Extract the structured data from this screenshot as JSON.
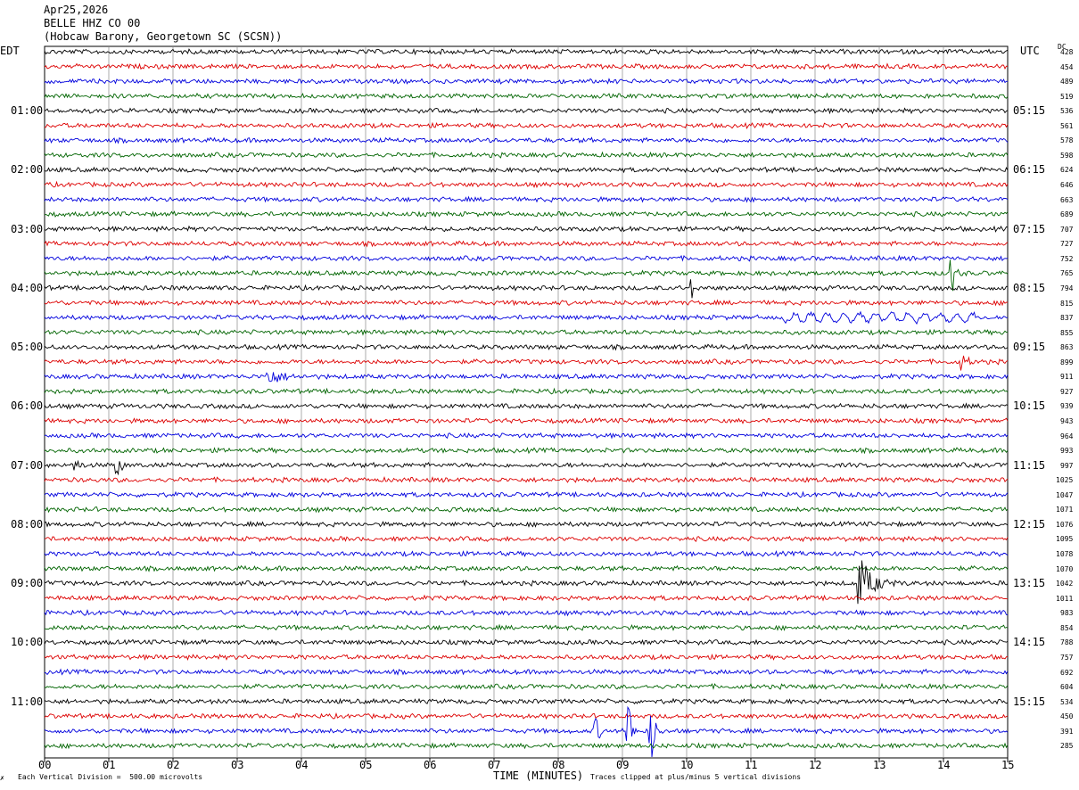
{
  "header": {
    "date": "Apr25,2026",
    "station": "BELLE HHZ CO 00",
    "location": "(Hobcaw Barony, Georgetown SC (SCSN))"
  },
  "left_timezone": "EDT",
  "right_timezone": "UTC",
  "dc_label": "DC",
  "footer": {
    "scale_note": "Each Vertical Division =  500.00 microvolts",
    "clip_note": "Traces clipped at plus/minus 5 vertical divisions",
    "marker": "✗"
  },
  "chart_data": {
    "type": "line",
    "title": "BELLE HHZ CO 00",
    "xlabel": "TIME (MINUTES)",
    "ylabel": "",
    "xlim": [
      0,
      15
    ],
    "x_ticks": [
      "00",
      "01",
      "02",
      "03",
      "04",
      "05",
      "06",
      "07",
      "08",
      "09",
      "10",
      "11",
      "12",
      "13",
      "14",
      "15"
    ],
    "grid": true,
    "trace_colors": [
      "#000000",
      "#dd0000",
      "#0000dd",
      "#006400"
    ],
    "row_count": 48,
    "left_hour_labels": [
      "01:00",
      "02:00",
      "03:00",
      "04:00",
      "05:00",
      "06:00",
      "07:00",
      "08:00",
      "09:00",
      "10:00",
      "11:00"
    ],
    "right_hour_labels": [
      "05:15",
      "06:15",
      "07:15",
      "08:15",
      "09:15",
      "10:15",
      "11:15",
      "12:15",
      "13:15",
      "14:15",
      "15:15"
    ],
    "dc_offsets": [
      428,
      454,
      489,
      519,
      536,
      561,
      578,
      598,
      624,
      646,
      663,
      689,
      707,
      727,
      752,
      765,
      794,
      815,
      837,
      855,
      863,
      899,
      911,
      927,
      939,
      943,
      964,
      993,
      997,
      1025,
      1047,
      1071,
      1076,
      1095,
      1078,
      1070,
      1042,
      1011,
      983,
      854,
      788,
      757,
      692,
      604,
      534,
      450,
      391,
      285
    ],
    "events": [
      {
        "row": 16,
        "minute": 10.1,
        "amplitude": 3
      },
      {
        "row": 15,
        "minute": 14.15,
        "amplitude": 6
      },
      {
        "row": 18,
        "minute": 11.5,
        "amplitude": 2,
        "duration": 3.0,
        "type": "long-period"
      },
      {
        "row": 21,
        "minute": 14.3,
        "amplitude": 3,
        "duration": 0.4
      },
      {
        "row": 22,
        "minute": 3.5,
        "amplitude": 3,
        "duration": 1.0
      },
      {
        "row": 28,
        "minute": 0.5,
        "amplitude": 3
      },
      {
        "row": 28,
        "minute": 1.15,
        "amplitude": 4
      },
      {
        "row": 36,
        "minute": 12.7,
        "amplitude": 10,
        "duration": 1.0
      },
      {
        "row": 46,
        "minute": 8.6,
        "amplitude": 5
      },
      {
        "row": 46,
        "minute": 9.1,
        "amplitude": 12
      },
      {
        "row": 46,
        "minute": 9.45,
        "amplitude": 14
      }
    ]
  }
}
